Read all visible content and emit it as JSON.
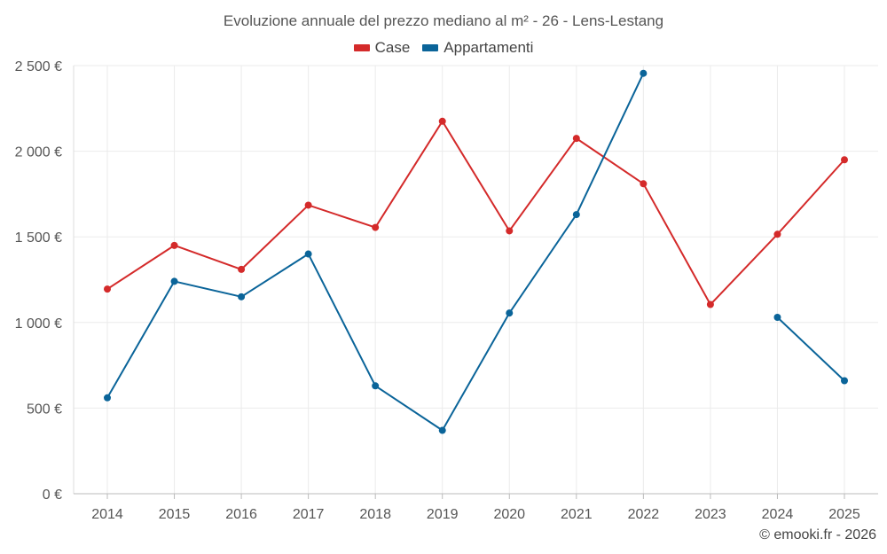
{
  "chart_data": {
    "type": "line",
    "title": "Evoluzione annuale del prezzo mediano al m² - 26 - Lens-Lestang",
    "categories": [
      "2014",
      "2015",
      "2016",
      "2017",
      "2018",
      "2019",
      "2020",
      "2021",
      "2022",
      "2023",
      "2024",
      "2025"
    ],
    "series": [
      {
        "name": "Case",
        "color": "#d42a2a",
        "values": [
          1195,
          1450,
          1310,
          1685,
          1555,
          2175,
          1535,
          2075,
          1810,
          1105,
          1515,
          1950
        ]
      },
      {
        "name": "Appartamenti",
        "color": "#0a6499",
        "values": [
          560,
          1240,
          1150,
          1400,
          630,
          370,
          1055,
          1630,
          2455,
          null,
          1030,
          660
        ]
      }
    ],
    "y_ticks": [
      0,
      500,
      1000,
      1500,
      2000,
      2500
    ],
    "y_tick_labels": [
      "0 €",
      "500 €",
      "1 000 €",
      "1 500 €",
      "2 000 €",
      "2 500 €"
    ],
    "ylim": [
      0,
      2500
    ],
    "xlabel": "",
    "ylabel": "",
    "grid": true,
    "legend_position": "top-center"
  },
  "credit": "© emooki.fr - 2026"
}
